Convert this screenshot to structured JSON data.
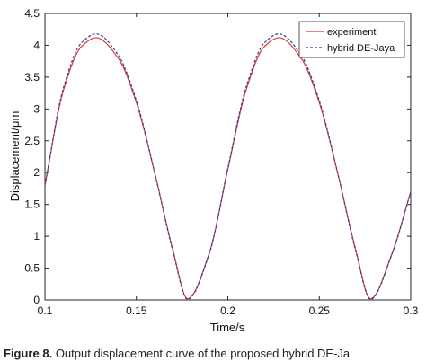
{
  "chart_data": {
    "type": "line",
    "xlabel": "Time/s",
    "ylabel": "Displacement/μm",
    "xlim": [
      0.1,
      0.3
    ],
    "ylim": [
      0,
      4.5
    ],
    "xticks": [
      "0.1",
      "0.15",
      "0.2",
      "0.25",
      "0.3"
    ],
    "yticks": [
      "0",
      "0.5",
      "1",
      "1.5",
      "2",
      "2.5",
      "3",
      "3.5",
      "4",
      "4.5"
    ],
    "grid": false,
    "legend_position": "top-right",
    "series": [
      {
        "name": "experiment",
        "color": "#e8322f",
        "style": "solid",
        "x": [
          0.1,
          0.11,
          0.12,
          0.128,
          0.14,
          0.15,
          0.16,
          0.17,
          0.178,
          0.19,
          0.2,
          0.21,
          0.22,
          0.228,
          0.24,
          0.25,
          0.26,
          0.27,
          0.278,
          0.29,
          0.3
        ],
        "y": [
          1.8,
          3.28,
          3.98,
          4.12,
          3.8,
          3.1,
          2.0,
          0.78,
          0.02,
          0.75,
          2.05,
          3.3,
          3.98,
          4.12,
          3.8,
          3.1,
          2.0,
          0.78,
          0.02,
          0.75,
          1.7
        ]
      },
      {
        "name": "hybrid DE-Jaya",
        "color": "#2b3ea8",
        "style": "dashed",
        "x": [
          0.1,
          0.11,
          0.12,
          0.128,
          0.14,
          0.15,
          0.16,
          0.17,
          0.178,
          0.19,
          0.2,
          0.21,
          0.22,
          0.228,
          0.24,
          0.25,
          0.26,
          0.27,
          0.278,
          0.29,
          0.3
        ],
        "y": [
          1.8,
          3.32,
          4.04,
          4.18,
          3.85,
          3.13,
          2.0,
          0.76,
          0.01,
          0.74,
          2.07,
          3.34,
          4.04,
          4.18,
          3.85,
          3.13,
          2.0,
          0.76,
          0.01,
          0.74,
          1.7
        ]
      }
    ]
  },
  "caption": {
    "label": "Figure 8.",
    "text": "Output displacement curve of the proposed hybrid DE-Ja"
  }
}
